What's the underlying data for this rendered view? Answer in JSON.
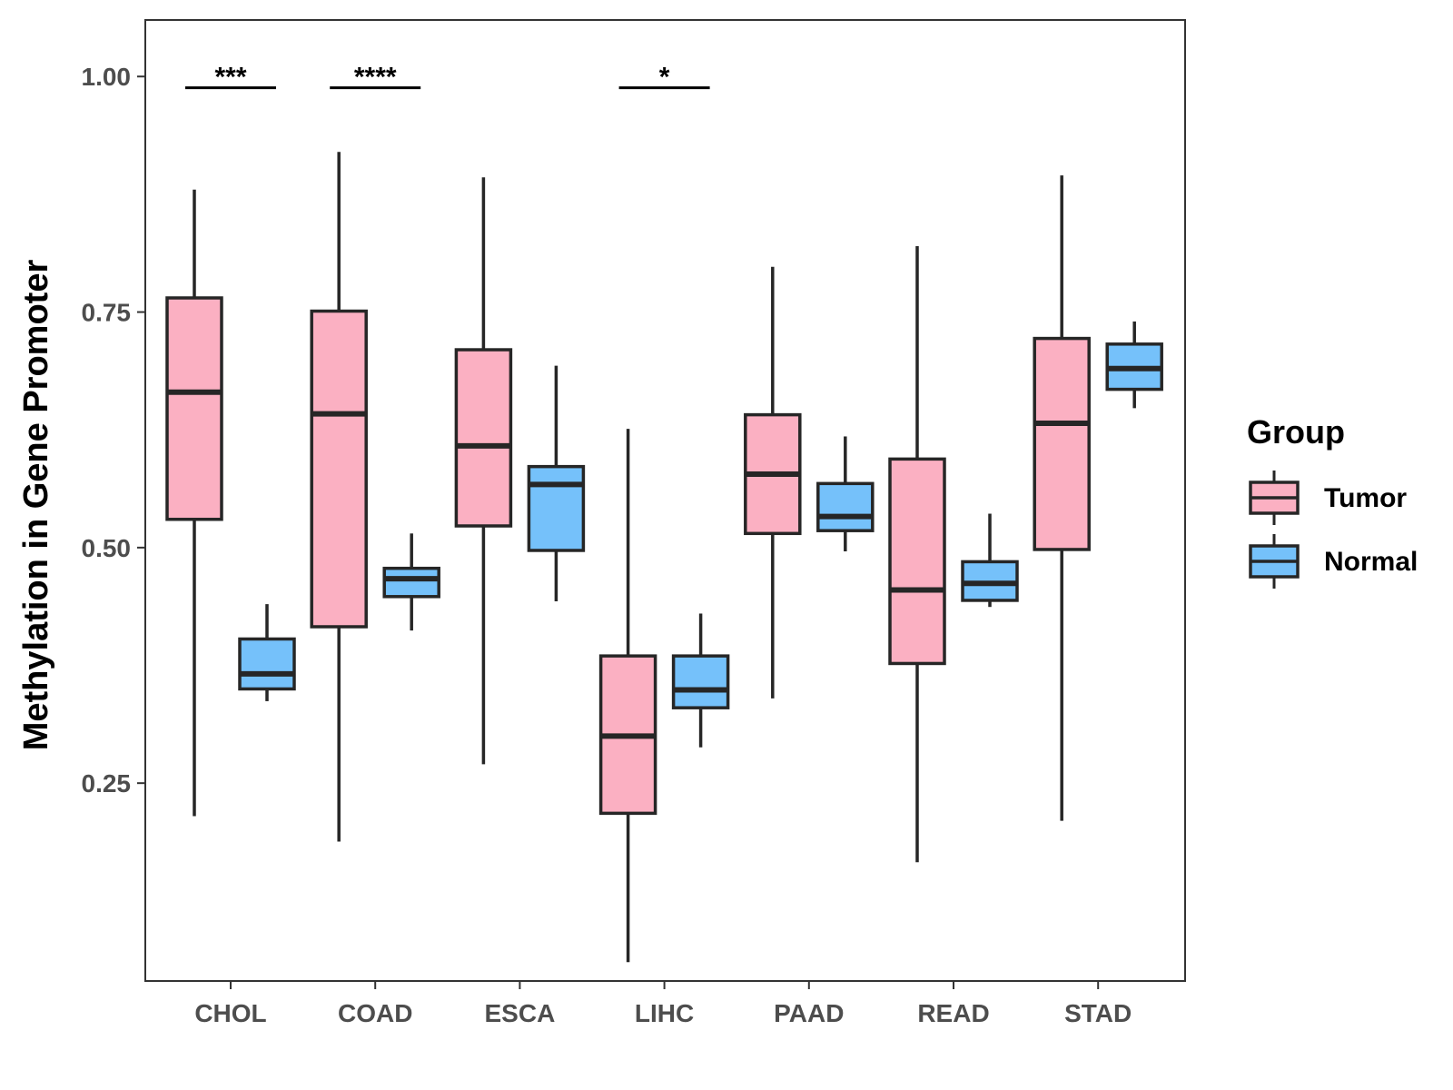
{
  "chart_data": {
    "type": "box",
    "title": "",
    "xlabel": "",
    "ylabel": "Methylation in Gene Promoter",
    "ylim": [
      0.04,
      1.06
    ],
    "yticks": [
      0.25,
      0.5,
      0.75,
      1.0
    ],
    "ytick_labels": [
      "0.25",
      "0.50",
      "0.75",
      "1.00"
    ],
    "categories": [
      "CHOL",
      "COAD",
      "ESCA",
      "LIHC",
      "PAAD",
      "READ",
      "STAD"
    ],
    "series": [
      {
        "name": "Tumor",
        "color": "#fbb0c2",
        "boxes": [
          {
            "min": 0.215,
            "q1": 0.53,
            "median": 0.665,
            "q3": 0.765,
            "max": 0.88
          },
          {
            "min": 0.188,
            "q1": 0.416,
            "median": 0.642,
            "q3": 0.751,
            "max": 0.92
          },
          {
            "min": 0.27,
            "q1": 0.523,
            "median": 0.608,
            "q3": 0.71,
            "max": 0.893
          },
          {
            "min": 0.06,
            "q1": 0.218,
            "median": 0.3,
            "q3": 0.385,
            "max": 0.626
          },
          {
            "min": 0.34,
            "q1": 0.515,
            "median": 0.578,
            "q3": 0.641,
            "max": 0.798
          },
          {
            "min": 0.166,
            "q1": 0.377,
            "median": 0.455,
            "q3": 0.594,
            "max": 0.82
          },
          {
            "min": 0.21,
            "q1": 0.498,
            "median": 0.632,
            "q3": 0.722,
            "max": 0.895
          }
        ]
      },
      {
        "name": "Normal",
        "color": "#75c1fa",
        "boxes": [
          {
            "min": 0.337,
            "q1": 0.35,
            "median": 0.366,
            "q3": 0.403,
            "max": 0.44
          },
          {
            "min": 0.412,
            "q1": 0.448,
            "median": 0.467,
            "q3": 0.478,
            "max": 0.515
          },
          {
            "min": 0.443,
            "q1": 0.497,
            "median": 0.567,
            "q3": 0.586,
            "max": 0.693
          },
          {
            "min": 0.288,
            "q1": 0.33,
            "median": 0.349,
            "q3": 0.385,
            "max": 0.43
          },
          {
            "min": 0.496,
            "q1": 0.518,
            "median": 0.533,
            "q3": 0.568,
            "max": 0.618
          },
          {
            "min": 0.437,
            "q1": 0.444,
            "median": 0.462,
            "q3": 0.485,
            "max": 0.536
          },
          {
            "min": 0.648,
            "q1": 0.668,
            "median": 0.69,
            "q3": 0.716,
            "max": 0.74
          }
        ]
      }
    ],
    "significance": [
      {
        "category": "CHOL",
        "label": "***",
        "y": 0.988
      },
      {
        "category": "COAD",
        "label": "****",
        "y": 0.988
      },
      {
        "category": "LIHC",
        "label": "*",
        "y": 0.988
      }
    ],
    "legend": {
      "title": "Group",
      "position": "right"
    },
    "grid": false
  }
}
